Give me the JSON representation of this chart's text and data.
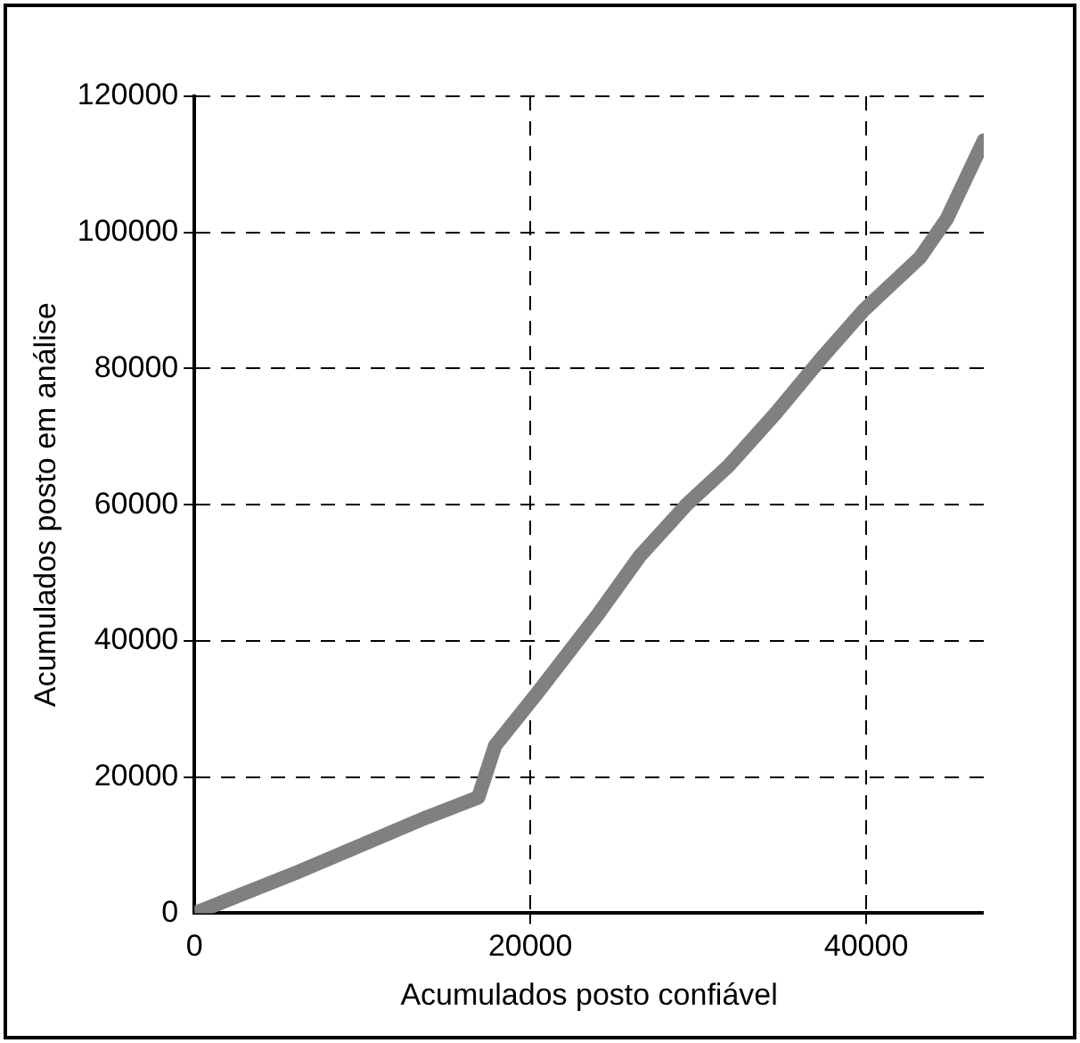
{
  "chart_data": {
    "type": "line",
    "xlabel": "Acumulados posto confiável",
    "ylabel": "Acumulados posto em análise",
    "x": [
      0,
      6100,
      13850,
      16900,
      17900,
      20400,
      24000,
      26500,
      29300,
      31800,
      34600,
      37500,
      39900,
      43200,
      44800,
      47000
    ],
    "series": [
      {
        "color": "#808080",
        "values": [
          0,
          6000,
          14100,
          17000,
          24600,
          32300,
          43800,
          52400,
          60000,
          65700,
          73400,
          82000,
          88700,
          96300,
          102000,
          113500
        ]
      }
    ],
    "xlim": [
      0,
      47000
    ],
    "xticks": [
      0,
      20000,
      40000
    ],
    "ylim": [
      0,
      120000
    ],
    "yticks": [
      0,
      20000,
      40000,
      60000,
      80000,
      100000,
      120000
    ],
    "grid": true,
    "legend": false,
    "marker": "none",
    "line_style": "solid"
  }
}
